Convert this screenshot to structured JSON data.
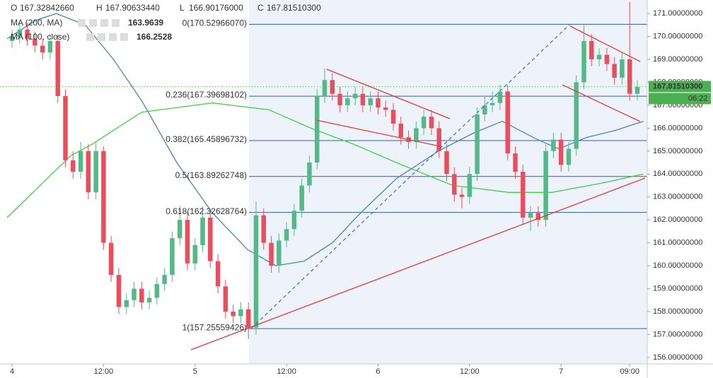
{
  "chart_data": {
    "type": "candlestick",
    "header": [
      {
        "label": "O",
        "value": "167.32842660"
      },
      {
        "label": "H",
        "value": "167.90633440"
      },
      {
        "label": "L",
        "value": "166.90176000"
      },
      {
        "label": "C",
        "value": "167.81510300"
      }
    ],
    "up_color": "#53b987",
    "down_color": "#eb4d5c",
    "open": [
      169.8,
      170.0,
      170.3,
      169.9,
      169.6,
      169.3,
      169.8,
      167.4,
      164.6,
      164.1,
      165.0,
      163.2,
      165.0,
      161.0,
      159.6,
      158.2,
      158.5,
      159.0,
      158.4,
      158.6,
      159.2,
      159.6,
      161.2,
      162.0,
      160.1,
      160.9,
      162.1,
      160.2,
      159.1,
      158.0,
      157.8,
      158.1,
      157.3,
      162.2,
      161.0,
      160.0,
      161.1,
      161.6,
      162.4,
      163.5,
      164.5,
      167.4,
      168.1,
      167.5,
      167.0,
      167.3,
      167.5,
      167.0,
      167.3,
      166.9,
      166.8,
      166.2,
      165.6,
      165.4,
      166.0,
      166.5,
      166.0,
      165.0,
      164.0,
      163.1,
      163.0,
      164.0,
      166.6,
      167.0,
      167.1,
      167.6,
      164.9,
      164.1,
      162.1,
      162.3,
      162.0,
      165.0,
      165.5,
      164.4,
      165.1,
      168.0,
      169.8,
      169.0,
      169.2,
      168.8,
      168.2,
      169.0,
      167.5
    ],
    "high": [
      170.3,
      170.6,
      170.6,
      170.2,
      169.9,
      170.1,
      170.1,
      167.7,
      165.0,
      165.4,
      165.3,
      165.4,
      165.2,
      161.3,
      159.9,
      158.8,
      159.3,
      159.3,
      158.9,
      159.5,
      159.9,
      161.5,
      162.6,
      162.3,
      161.2,
      162.6,
      162.4,
      160.5,
      159.4,
      158.3,
      158.4,
      158.4,
      162.8,
      162.5,
      161.3,
      161.4,
      161.9,
      162.7,
      163.8,
      164.8,
      167.7,
      168.6,
      168.4,
      167.8,
      167.6,
      167.8,
      167.8,
      167.6,
      167.6,
      167.2,
      167.1,
      166.5,
      165.9,
      166.3,
      166.8,
      166.8,
      166.3,
      165.3,
      164.3,
      163.4,
      164.3,
      166.9,
      167.4,
      167.6,
      167.9,
      167.9,
      165.2,
      164.4,
      162.6,
      162.6,
      165.3,
      165.8,
      165.8,
      165.4,
      168.3,
      170.5,
      170.1,
      169.5,
      169.5,
      169.1,
      169.3,
      171.5,
      168.1
    ],
    "low": [
      169.5,
      169.7,
      169.6,
      169.3,
      169.0,
      169.0,
      167.1,
      164.3,
      163.8,
      163.8,
      162.9,
      162.9,
      160.7,
      159.3,
      157.9,
      157.9,
      158.2,
      158.1,
      158.1,
      158.3,
      158.9,
      159.3,
      160.9,
      159.8,
      159.8,
      160.6,
      159.9,
      158.8,
      157.7,
      157.5,
      157.5,
      156.8,
      157.0,
      160.7,
      159.7,
      159.7,
      160.8,
      161.3,
      162.1,
      163.2,
      164.2,
      167.1,
      167.2,
      166.7,
      166.7,
      167.0,
      166.7,
      166.7,
      166.6,
      166.5,
      165.9,
      165.3,
      165.1,
      165.1,
      165.7,
      165.7,
      164.7,
      163.7,
      162.8,
      162.5,
      162.7,
      163.7,
      166.3,
      166.7,
      166.8,
      164.6,
      163.8,
      161.8,
      161.5,
      161.7,
      161.7,
      164.7,
      164.1,
      164.1,
      164.8,
      167.7,
      168.7,
      168.7,
      168.5,
      167.9,
      167.9,
      167.2,
      167.2
    ],
    "close": [
      170.0,
      170.3,
      169.9,
      169.6,
      169.3,
      169.8,
      167.4,
      164.6,
      164.1,
      165.0,
      163.2,
      165.0,
      161.0,
      159.6,
      158.2,
      158.5,
      159.0,
      158.4,
      158.6,
      159.2,
      159.6,
      161.2,
      162.0,
      160.1,
      160.9,
      162.1,
      160.2,
      159.1,
      158.0,
      157.8,
      158.1,
      157.3,
      162.2,
      161.0,
      160.0,
      161.1,
      161.6,
      162.4,
      163.5,
      164.5,
      167.4,
      168.1,
      167.5,
      167.0,
      167.3,
      167.5,
      167.0,
      167.3,
      166.9,
      166.8,
      166.2,
      165.6,
      165.4,
      166.0,
      166.5,
      166.0,
      165.0,
      164.0,
      163.1,
      163.0,
      164.0,
      166.6,
      167.0,
      167.1,
      167.6,
      164.9,
      164.1,
      162.1,
      162.3,
      162.0,
      165.0,
      165.5,
      164.4,
      165.1,
      168.0,
      169.8,
      169.0,
      169.2,
      168.8,
      168.2,
      169.0,
      167.5,
      167.8
    ],
    "xlim": [
      -1.58,
      83.3
    ],
    "xticks": [
      {
        "value": 0,
        "label": "4"
      },
      {
        "value": 12,
        "label": "12:00"
      },
      {
        "value": 24,
        "label": "5"
      },
      {
        "value": 36,
        "label": "12:00"
      },
      {
        "value": 48,
        "label": "6"
      },
      {
        "value": 60,
        "label": "12:00"
      },
      {
        "value": 72,
        "label": "7"
      },
      {
        "value": 81,
        "label": "09:00"
      }
    ],
    "ylim": [
      155.72,
      171.59
    ],
    "yticks": [
      {
        "value": 156,
        "label": "156.00000000"
      },
      {
        "value": 157,
        "label": "157.00000000"
      },
      {
        "value": 158,
        "label": "158.00000000"
      },
      {
        "value": 159,
        "label": "159.00000000"
      },
      {
        "value": 160,
        "label": "160.00000000"
      },
      {
        "value": 161,
        "label": "161.00000000"
      },
      {
        "value": 162,
        "label": "162.00000000"
      },
      {
        "value": 163,
        "label": "163.00000000"
      },
      {
        "value": 164,
        "label": "164.00000000"
      },
      {
        "value": 165,
        "label": "165.00000000"
      },
      {
        "value": 166,
        "label": "166.00000000"
      },
      {
        "value": 167,
        "label": "167.00000000"
      },
      {
        "value": 168,
        "label": "168.00000000"
      },
      {
        "value": 169,
        "label": "169.00000000"
      },
      {
        "value": 170,
        "label": "170.00000000"
      },
      {
        "value": 171,
        "label": "171.00000000"
      }
    ],
    "indicators": [
      {
        "name": "MA (200, MA)",
        "value_label": "163.9639",
        "color": "#3fd33f",
        "x": [
          -0.65,
          7.7,
          10.5,
          17,
          26.3,
          33.7,
          39.2,
          44.8,
          50.4,
          57.8,
          65.2,
          70.8,
          77.3,
          82.8
        ],
        "values": [
          162.1,
          164.8,
          165.3,
          166.7,
          167.1,
          166.8,
          166.0,
          165.3,
          164.5,
          163.5,
          163.2,
          163.2,
          163.6,
          164.0
        ]
      },
      {
        "name": "MA (100, close)",
        "value_label": "166.2528",
        "color": "#4a86b8",
        "x": [
          -0.65,
          3.1,
          5.8,
          9.6,
          13.3,
          17,
          21.6,
          26.3,
          30.9,
          34.6,
          38.3,
          42,
          45.7,
          50.4,
          55.9,
          60.6,
          64.3,
          68.9,
          71.7,
          75.4,
          79.1,
          82.8
        ],
        "values": [
          169.9,
          170.7,
          171.0,
          170.5,
          169.0,
          167.2,
          164.5,
          162.3,
          160.7,
          160.0,
          160.2,
          161.0,
          162.3,
          163.8,
          165.0,
          165.8,
          166.3,
          165.5,
          165.1,
          165.6,
          165.9,
          166.3
        ]
      }
    ],
    "fib": {
      "color": "#2f5fa8",
      "levels": [
        {
          "label": "0(170.52966070)",
          "value": 170.5296607
        },
        {
          "label": "0.236(167.39698102)",
          "value": 167.39698102
        },
        {
          "label": "0.382(165.45896732)",
          "value": 165.45896732
        },
        {
          "label": "0.5(163.89262748)",
          "value": 163.89262748
        },
        {
          "label": "0.618(162.32628764)",
          "value": 162.32628764
        },
        {
          "label": "1(157.25559426)",
          "value": 157.25559426
        }
      ]
    },
    "last_price": {
      "label": "167.81510300",
      "value": 167.815103,
      "color": "#4caf50"
    },
    "countdown": "06:22"
  }
}
